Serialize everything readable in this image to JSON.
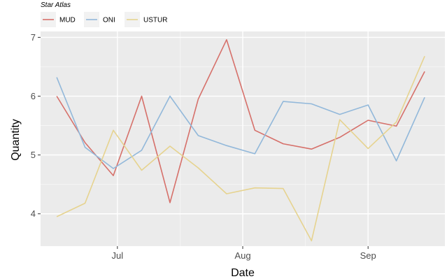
{
  "chart_data": {
    "type": "line",
    "legend_title": "Star Atlas",
    "legend_position": "top-left",
    "xlabel": "Date",
    "ylabel": "Quantity",
    "x_ticks": [
      {
        "date": "2022-07-01",
        "label": "Jul"
      },
      {
        "date": "2022-08-01",
        "label": "Aug"
      },
      {
        "date": "2022-09-01",
        "label": "Sep"
      }
    ],
    "y_ticks": [
      4,
      5,
      6,
      7
    ],
    "xlim": [
      "2022-06-12",
      "2022-09-20"
    ],
    "ylim": [
      3.45,
      7.1
    ],
    "grid": true,
    "dates": [
      "2022-06-16",
      "2022-06-23",
      "2022-06-30",
      "2022-07-07",
      "2022-07-14",
      "2022-07-21",
      "2022-07-28",
      "2022-08-04",
      "2022-08-11",
      "2022-08-18",
      "2022-08-25",
      "2022-09-01",
      "2022-09-08",
      "2022-09-15"
    ],
    "series": [
      {
        "name": "MUD",
        "color": "#d6706a",
        "values": [
          6.0,
          5.21,
          4.65,
          6.0,
          4.19,
          5.95,
          6.96,
          5.42,
          5.19,
          5.1,
          5.3,
          5.59,
          5.49,
          6.42
        ]
      },
      {
        "name": "ONI",
        "color": "#92b8da",
        "values": [
          6.32,
          5.13,
          4.77,
          5.08,
          6.0,
          5.33,
          5.16,
          5.02,
          5.91,
          5.87,
          5.69,
          5.85,
          4.9,
          5.98
        ]
      },
      {
        "name": "USTUR",
        "color": "#e6d38f",
        "values": [
          3.95,
          4.18,
          5.42,
          4.74,
          5.15,
          4.78,
          4.34,
          4.44,
          4.43,
          3.54,
          5.6,
          5.11,
          5.56,
          6.68
        ]
      }
    ]
  }
}
